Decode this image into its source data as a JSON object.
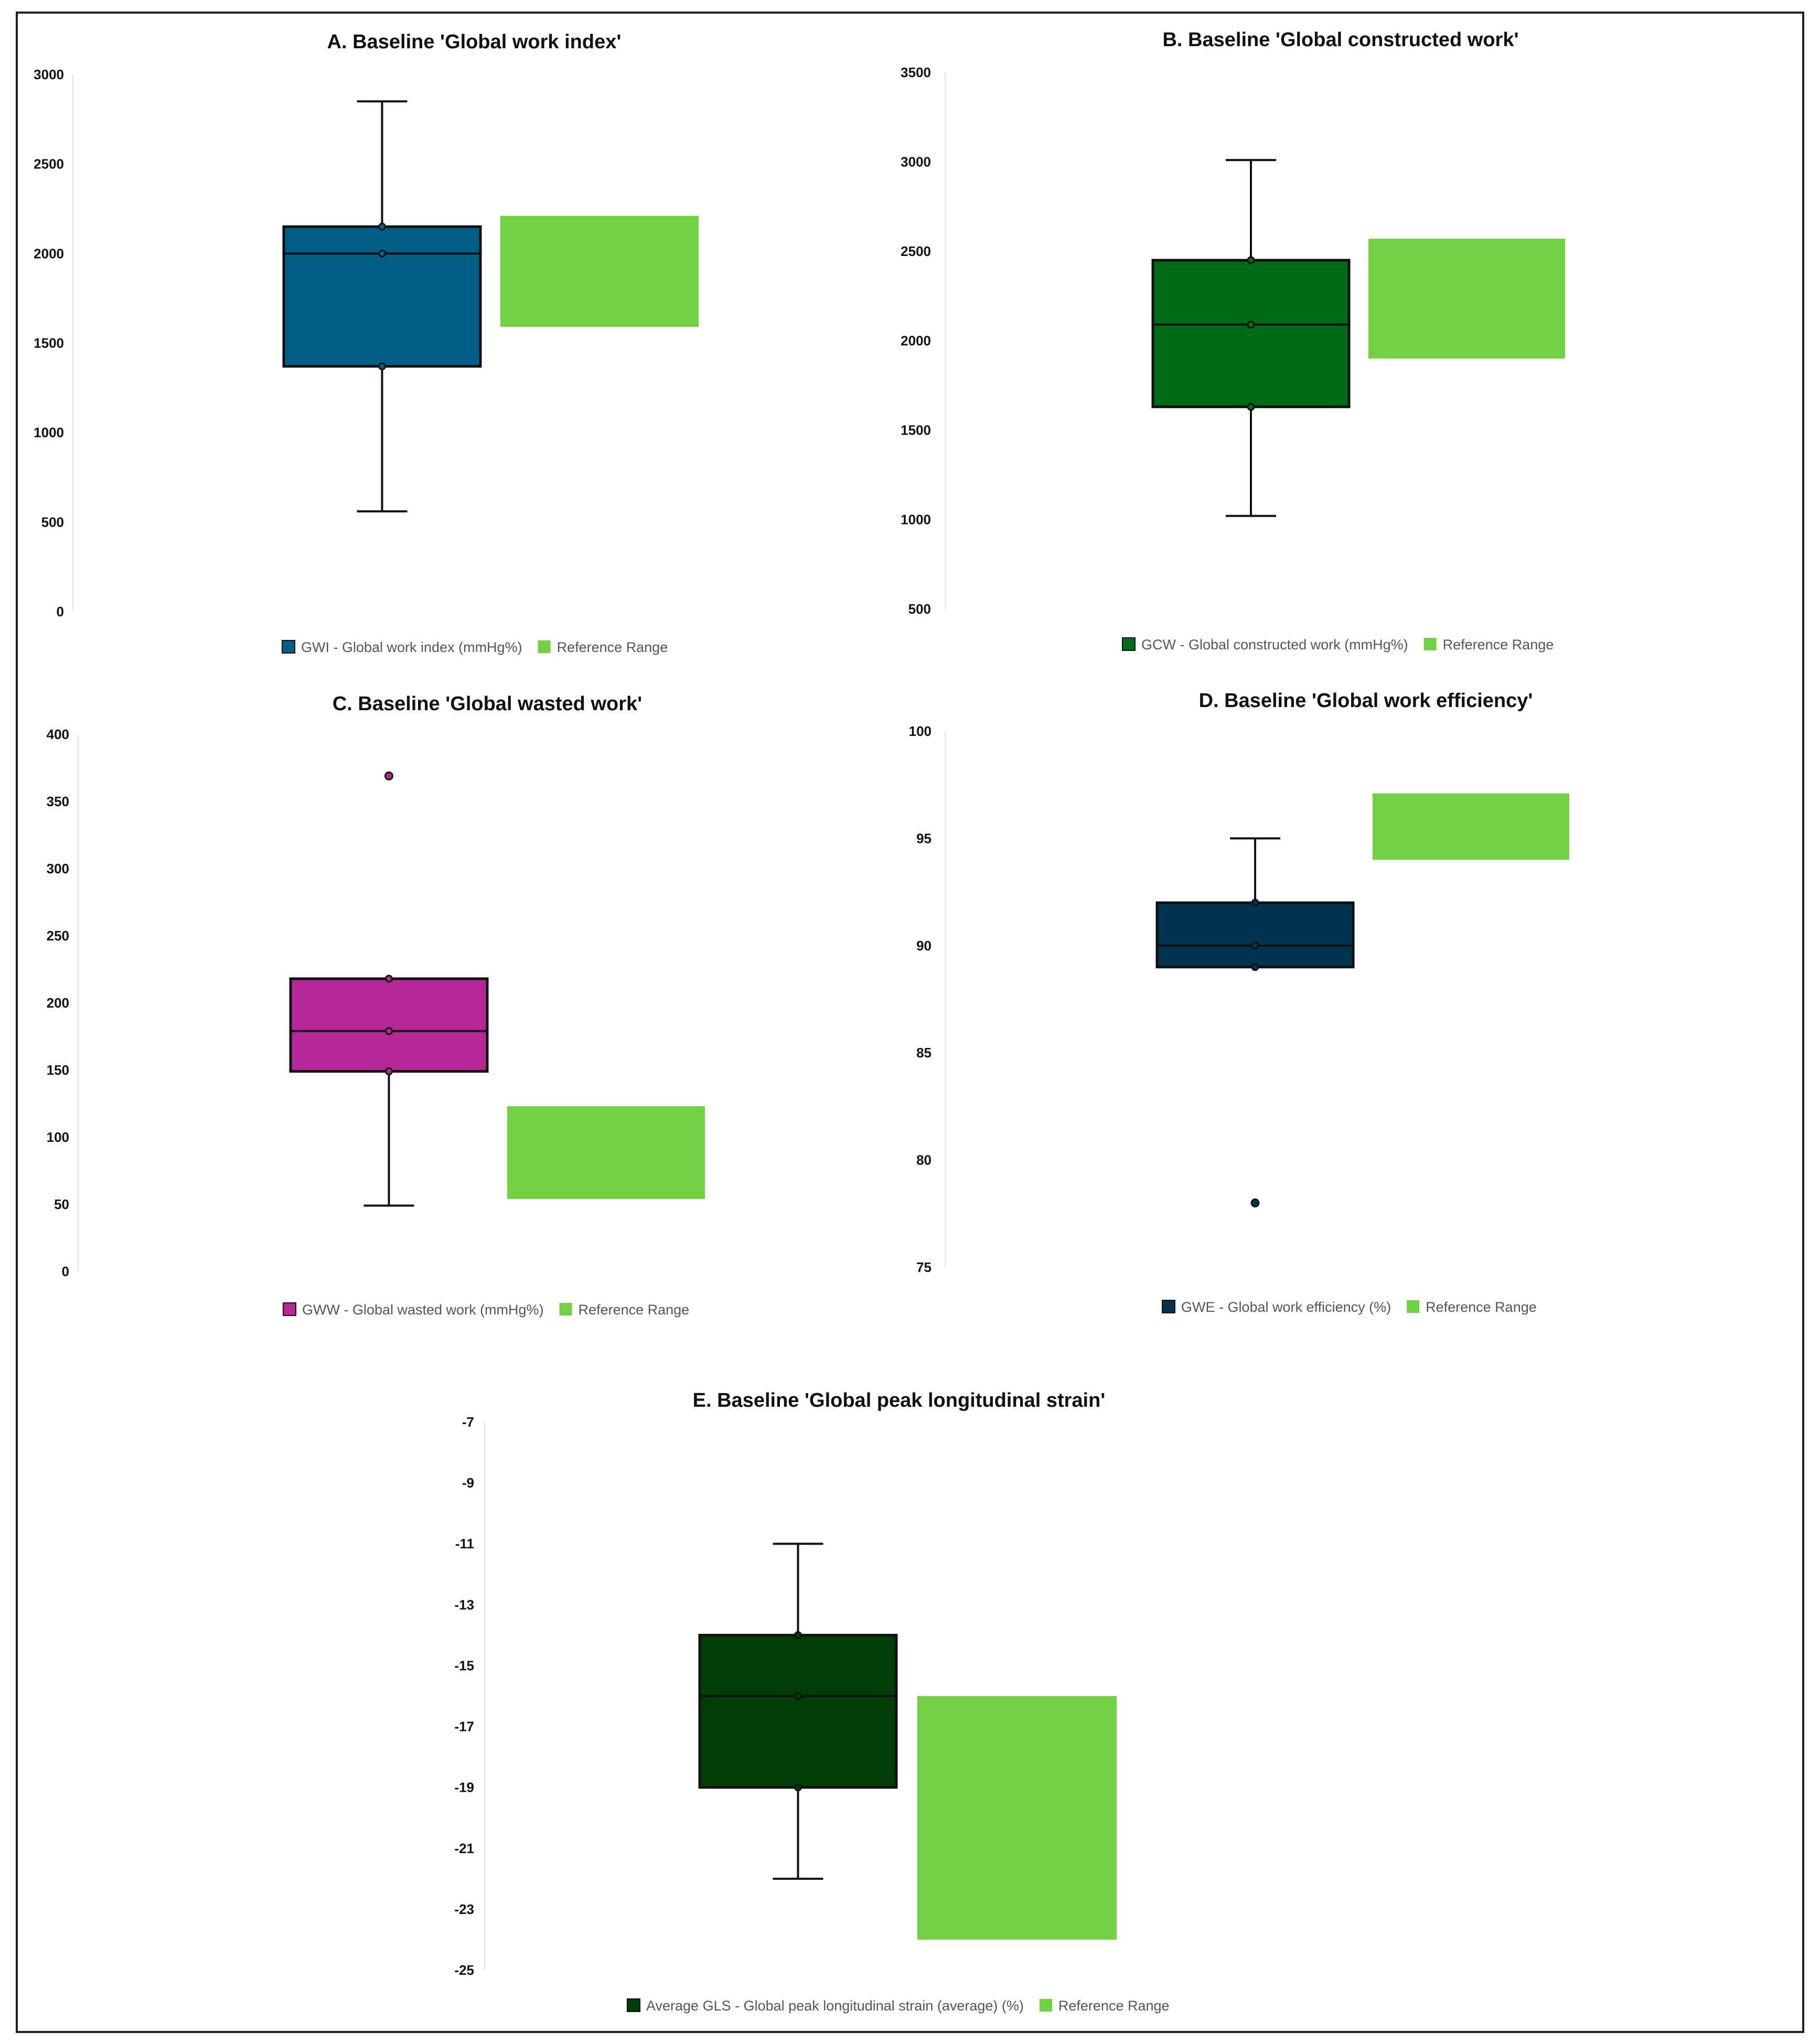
{
  "chart_data": [
    {
      "id": "A",
      "type": "box",
      "title": "A. Baseline 'Global work index'",
      "ylim": [
        0,
        3000
      ],
      "yticks": [
        0,
        500,
        1000,
        1500,
        2000,
        2500,
        3000
      ],
      "box": {
        "min": 560,
        "q1": 1370,
        "median": 2000,
        "mean": 2000,
        "q3": 2150,
        "max": 2850,
        "outliers": []
      },
      "reference_range": [
        1590,
        2210
      ],
      "box_color": "#005F87",
      "reference_color": "#74D043",
      "legend": [
        {
          "label": "GWI - Global work index (mmHg%)",
          "color": "#005F87"
        },
        {
          "label": "Reference Range",
          "color": "#74D043"
        }
      ]
    },
    {
      "id": "B",
      "type": "box",
      "title": "B. Baseline 'Global constructed work'",
      "ylim": [
        500,
        3500
      ],
      "yticks": [
        500,
        1000,
        1500,
        2000,
        2500,
        3000,
        3500
      ],
      "box": {
        "min": 1020,
        "q1": 1630,
        "median": 2090,
        "mean": 2090,
        "q3": 2450,
        "max": 3010,
        "outliers": []
      },
      "reference_range": [
        1900,
        2570
      ],
      "box_color": "#006A17",
      "reference_color": "#74D043",
      "legend": [
        {
          "label": "GCW - Global constructed work (mmHg%)",
          "color": "#006A17"
        },
        {
          "label": "Reference Range",
          "color": "#74D043"
        }
      ]
    },
    {
      "id": "C",
      "type": "box",
      "title": "C. Baseline 'Global wasted work'",
      "ylim": [
        0,
        400
      ],
      "yticks": [
        0,
        50,
        100,
        150,
        200,
        250,
        300,
        350,
        400
      ],
      "box": {
        "min": 49,
        "q1": 149,
        "median": 179,
        "mean": 179,
        "q3": 218,
        "max": 218,
        "outliers": [
          369
        ]
      },
      "reference_range": [
        54,
        123
      ],
      "box_color": "#B42896",
      "reference_color": "#74D043",
      "legend": [
        {
          "label": "GWW - Global wasted work (mmHg%)",
          "color": "#B42896"
        },
        {
          "label": "Reference Range",
          "color": "#74D043"
        }
      ]
    },
    {
      "id": "D",
      "type": "box",
      "title": "D. Baseline 'Global work efficiency'",
      "ylim": [
        75,
        100
      ],
      "yticks": [
        75,
        80,
        85,
        90,
        95,
        100
      ],
      "box": {
        "min": 89,
        "q1": 89,
        "median": 90,
        "mean": 90,
        "q3": 92,
        "max": 95,
        "outliers": [
          78
        ]
      },
      "reference_range": [
        94,
        97.1
      ],
      "box_color": "#00334E",
      "reference_color": "#74D043",
      "legend": [
        {
          "label": "GWE - Global work efficiency (%)",
          "color": "#00334E"
        },
        {
          "label": "Reference Range",
          "color": "#74D043"
        }
      ]
    },
    {
      "id": "E",
      "type": "box",
      "title": "E. Baseline 'Global peak longitudinal strain'",
      "ylim": [
        -25,
        -7
      ],
      "yticks": [
        -25,
        -23,
        -21,
        -19,
        -17,
        -15,
        -13,
        -11,
        -9,
        -7
      ],
      "box": {
        "min": -22,
        "q1": -19,
        "median": -16,
        "mean": -16,
        "q3": -14,
        "max": -11,
        "outliers": []
      },
      "reference_range": [
        -24,
        -16
      ],
      "box_color": "#003D08",
      "reference_color": "#74D043",
      "legend": [
        {
          "label": "Average GLS - Global peak longitudinal strain (average) (%)",
          "color": "#003D08"
        },
        {
          "label": "Reference Range",
          "color": "#74D043"
        }
      ]
    }
  ]
}
